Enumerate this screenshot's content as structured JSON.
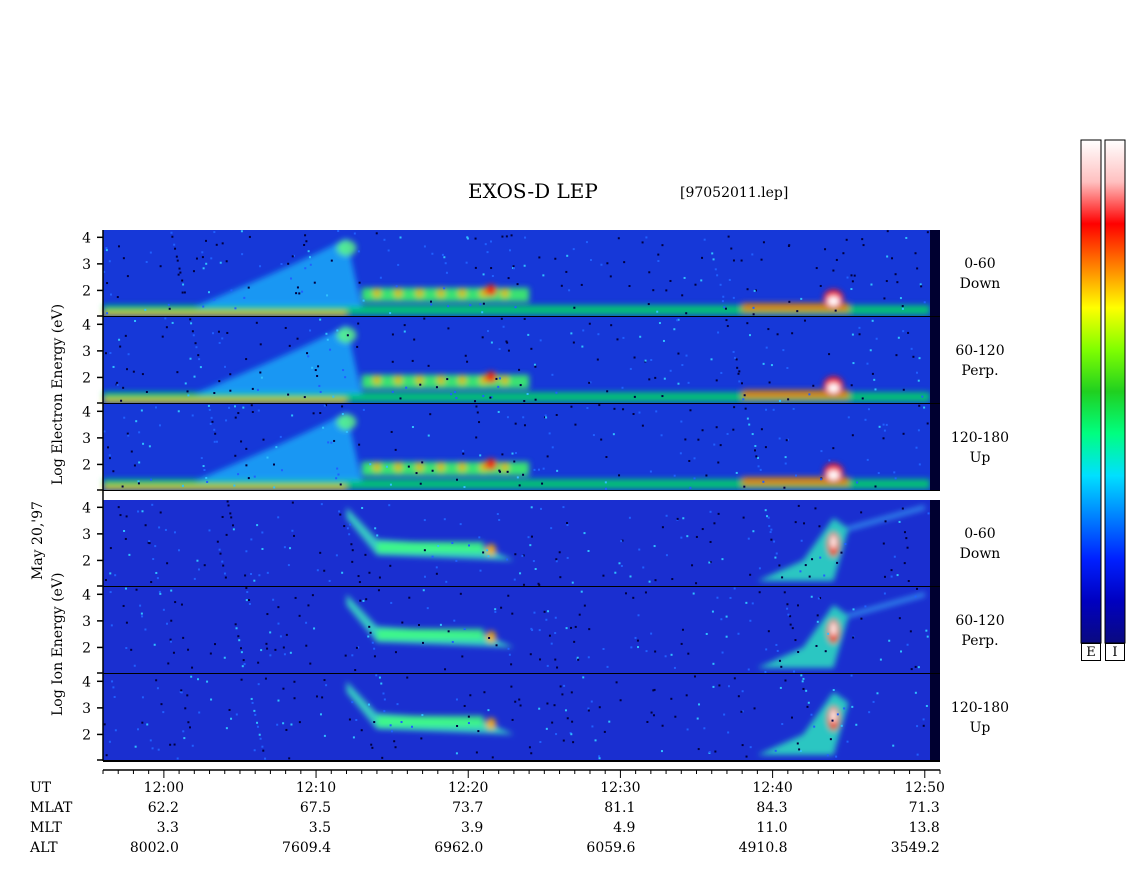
{
  "title": "EXOS-D LEP",
  "file": "[97052011.lep]",
  "date_label": "May 20,'97",
  "electron_ylabel": "Log  Electron  Energy (eV)",
  "ion_ylabel": "Log  Ion  Energy (eV)",
  "colors": {
    "background_dark": "#1a1ab0",
    "accent_blue": "#1040e0",
    "colormap": [
      "#0a0a80",
      "#0000c0",
      "#0020ff",
      "#0080ff",
      "#00e0ff",
      "#00ff80",
      "#20d020",
      "#80ff00",
      "#ffff00",
      "#ff8000",
      "#ff0000",
      "#ffc0c0",
      "#ffffff"
    ]
  },
  "chart_data": {
    "type": "heatmap",
    "title": "EXOS-D LEP",
    "x_axis": {
      "unit": "UT",
      "range": [
        "11:56",
        "12:51"
      ],
      "major_ticks": [
        "12:00",
        "12:10",
        "12:20",
        "12:30",
        "12:40",
        "12:50"
      ]
    },
    "y_axis": {
      "scale": "log",
      "ticks": [
        "2",
        "3",
        "4"
      ],
      "range": [
        1,
        4.2
      ]
    },
    "panels": [
      {
        "species": "Electron",
        "pitch_angle": "0-60",
        "direction": "Down"
      },
      {
        "species": "Electron",
        "pitch_angle": "60-120",
        "direction": "Perp."
      },
      {
        "species": "Electron",
        "pitch_angle": "120-180",
        "direction": "Up"
      },
      {
        "species": "Ion",
        "pitch_angle": "0-60",
        "direction": "Down"
      },
      {
        "species": "Ion",
        "pitch_angle": "60-120",
        "direction": "Perp."
      },
      {
        "species": "Ion",
        "pitch_angle": "120-180",
        "direction": "Up"
      }
    ],
    "orbit_table": {
      "rows": [
        "UT",
        "MLAT",
        "MLT",
        "ALT"
      ],
      "columns": [
        {
          "UT": "12:00",
          "MLAT": "62.2",
          "MLT": "3.3",
          "ALT": "8002.0"
        },
        {
          "UT": "12:10",
          "MLAT": "67.5",
          "MLT": "3.5",
          "ALT": "7609.4"
        },
        {
          "UT": "12:20",
          "MLAT": "73.7",
          "MLT": "3.9",
          "ALT": "6962.0"
        },
        {
          "UT": "12:30",
          "MLAT": "81.1",
          "MLT": "4.9",
          "ALT": "6059.6"
        },
        {
          "UT": "12:40",
          "MLAT": "84.3",
          "MLT": "11.0",
          "ALT": "4910.8"
        },
        {
          "UT": "12:50",
          "MLAT": "71.3",
          "MLT": "13.8",
          "ALT": "3549.2"
        }
      ]
    },
    "colorbars": [
      "E",
      "I"
    ]
  }
}
